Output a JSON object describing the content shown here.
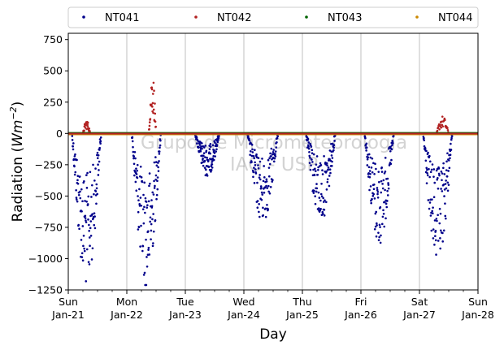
{
  "chart_data": {
    "type": "scatter",
    "xlabel": "Day",
    "ylabel_main": "Radiation (",
    "ylabel_unit": "Wm",
    "ylabel_exp": "−2",
    "ylabel_close": ")",
    "ylim": [
      -1250,
      800
    ],
    "xlim": [
      "2024-01-21",
      "2024-01-28"
    ],
    "yticks": [
      750,
      500,
      250,
      0,
      -250,
      -500,
      -750,
      -1000,
      -1250
    ],
    "ytick_labels": [
      "750",
      "500",
      "250",
      "0",
      "−250",
      "−500",
      "−750",
      "−1000",
      "−1250"
    ],
    "xticks": [
      {
        "day": "Sun",
        "date": "Jan-21"
      },
      {
        "day": "Mon",
        "date": "Jan-22"
      },
      {
        "day": "Tue",
        "date": "Jan-23"
      },
      {
        "day": "Wed",
        "date": "Jan-24"
      },
      {
        "day": "Thu",
        "date": "Jan-25"
      },
      {
        "day": "Fri",
        "date": "Jan-26"
      },
      {
        "day": "Sat",
        "date": "Jan-27"
      },
      {
        "day": "Sun",
        "date": "Jan-28"
      }
    ],
    "grid": "x-major",
    "legend_placement": "top",
    "series": [
      {
        "name": "NT041",
        "color": "#00008b"
      },
      {
        "name": "NT042",
        "color": "#b22222"
      },
      {
        "name": "NT043",
        "color": "#006400"
      },
      {
        "name": "NT044",
        "color": "#cc8800"
      }
    ],
    "daily_negative_events": [
      {
        "date": "2024-01-21",
        "start_h": 1.5,
        "end_h": 13.5,
        "min_w": -1230
      },
      {
        "date": "2024-01-22",
        "start_h": 2.0,
        "end_h": 14.0,
        "min_w": -1230
      },
      {
        "date": "2024-01-23",
        "start_h": 4.0,
        "end_h": 14.0,
        "min_w": -340
      },
      {
        "date": "2024-01-24",
        "start_h": 1.5,
        "end_h": 14.0,
        "min_w": -720
      },
      {
        "date": "2024-01-25",
        "start_h": 1.5,
        "end_h": 13.5,
        "min_w": -710
      },
      {
        "date": "2024-01-26",
        "start_h": 1.5,
        "end_h": 13.5,
        "min_w": -900
      },
      {
        "date": "2024-01-27",
        "start_h": 1.5,
        "end_h": 13.5,
        "min_w": -1070
      }
    ],
    "positive_events": [
      {
        "date": "2024-01-21",
        "start_h": 6.0,
        "end_h": 9.0,
        "max_w": 110,
        "series": "NT042"
      },
      {
        "date": "2024-01-22",
        "start_h": 9.0,
        "end_h": 12.0,
        "max_w": 500,
        "series": "NT042"
      },
      {
        "date": "2024-01-27",
        "start_h": 7.0,
        "end_h": 12.0,
        "max_w": 140,
        "series": "NT042"
      }
    ],
    "watermark": [
      "Grupo de Micrometeorologia",
      "IAG - USP"
    ]
  }
}
